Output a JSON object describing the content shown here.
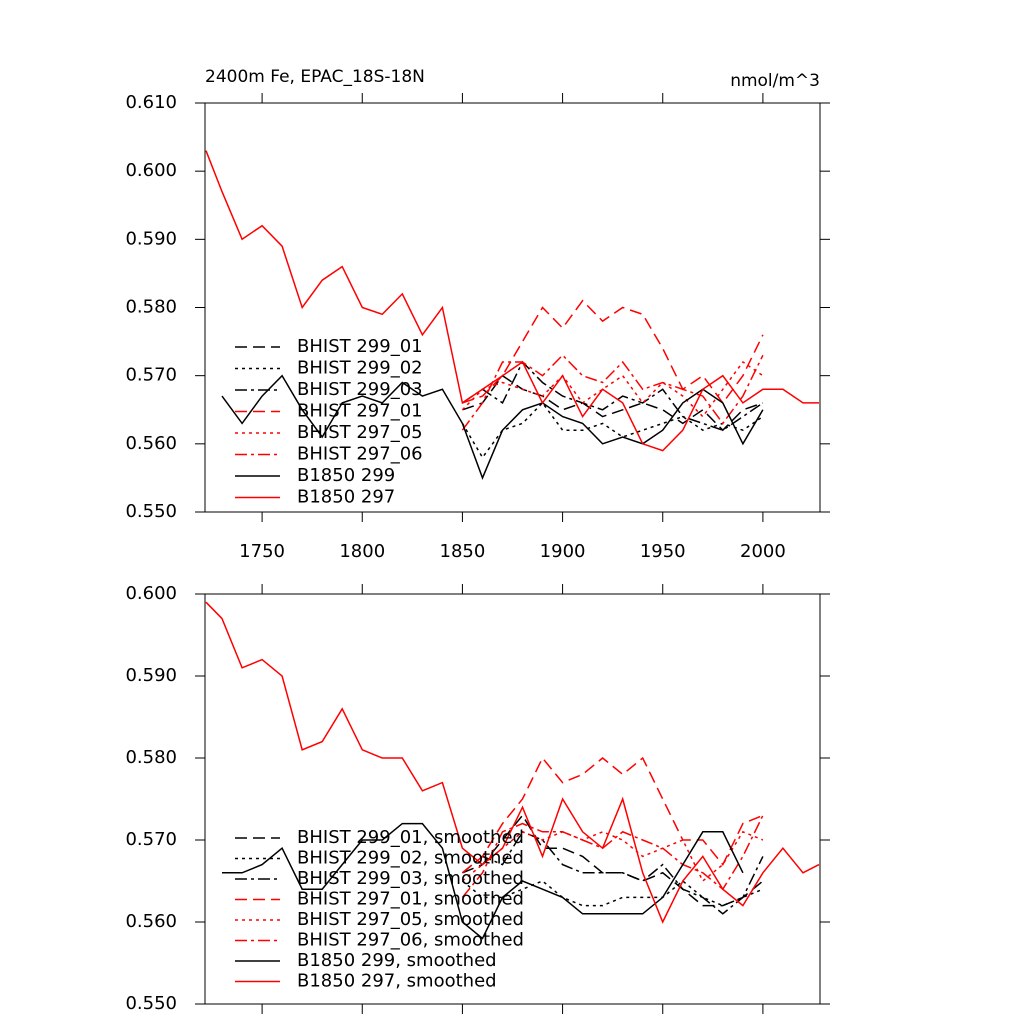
{
  "chart_data": [
    {
      "type": "line",
      "title": "2400m Fe, EPAC_18S-18N",
      "units": "nmol/m^3",
      "x": [
        1722,
        1730,
        1740,
        1750,
        1760,
        1770,
        1780,
        1790,
        1800,
        1810,
        1820,
        1830,
        1840,
        1850,
        1860,
        1870,
        1880,
        1890,
        1900,
        1910,
        1920,
        1930,
        1940,
        1950,
        1960,
        1970,
        1980,
        1990,
        2000,
        2010,
        2020,
        2028
      ],
      "xlim": [
        1721.5,
        2028.5
      ],
      "xticks": [
        1750,
        1800,
        1850,
        1900,
        1950,
        2000
      ],
      "ylim": [
        0.55,
        0.61
      ],
      "yticks": [
        {
          "value": 0.55,
          "label": "0.550"
        },
        {
          "value": 0.56,
          "label": "0.560"
        },
        {
          "value": 0.57,
          "label": "0.570"
        },
        {
          "value": 0.58,
          "label": "0.580"
        },
        {
          "value": 0.59,
          "label": "0.590"
        },
        {
          "value": 0.6,
          "label": "0.600"
        },
        {
          "value": 0.61,
          "label": "0.610"
        }
      ],
      "legend": "left",
      "series": [
        {
          "name": "BHIST 299_01",
          "color": "#000000",
          "dash": "dash",
          "values": [
            null,
            null,
            null,
            null,
            null,
            null,
            null,
            null,
            null,
            null,
            null,
            null,
            null,
            0.565,
            0.566,
            0.57,
            0.568,
            0.567,
            0.565,
            0.566,
            0.564,
            0.565,
            0.566,
            0.565,
            0.563,
            0.565,
            0.562,
            0.565,
            0.566,
            null,
            null,
            null
          ]
        },
        {
          "name": "BHIST 299_02",
          "color": "#000000",
          "dash": "dot",
          "values": [
            null,
            null,
            null,
            null,
            null,
            null,
            null,
            null,
            null,
            null,
            null,
            null,
            null,
            0.563,
            0.558,
            0.562,
            0.563,
            0.566,
            0.562,
            0.562,
            0.563,
            0.561,
            0.562,
            0.563,
            0.564,
            0.562,
            0.563,
            0.562,
            0.564,
            null,
            null,
            null
          ]
        },
        {
          "name": "BHIST 299_03",
          "color": "#000000",
          "dash": "dashdot",
          "values": [
            null,
            null,
            null,
            null,
            null,
            null,
            null,
            null,
            null,
            null,
            null,
            null,
            null,
            0.566,
            0.568,
            0.566,
            0.572,
            0.569,
            0.567,
            0.566,
            0.565,
            0.567,
            0.566,
            0.568,
            0.564,
            0.563,
            0.562,
            0.564,
            0.566,
            null,
            null,
            null
          ]
        },
        {
          "name": "BHIST 297_01",
          "color": "#ff0000",
          "dash": "dash",
          "values": [
            null,
            null,
            null,
            null,
            null,
            null,
            null,
            null,
            null,
            null,
            null,
            null,
            null,
            0.566,
            0.567,
            0.57,
            0.575,
            0.58,
            0.577,
            0.581,
            0.578,
            0.58,
            0.579,
            0.574,
            0.568,
            0.57,
            0.566,
            0.57,
            0.576,
            null,
            null,
            null
          ]
        },
        {
          "name": "BHIST 297_05",
          "color": "#ff0000",
          "dash": "dot",
          "values": [
            null,
            null,
            null,
            null,
            null,
            null,
            null,
            null,
            null,
            null,
            null,
            null,
            null,
            0.565,
            0.568,
            0.569,
            0.568,
            0.567,
            0.57,
            0.566,
            0.568,
            0.57,
            0.566,
            0.569,
            0.567,
            0.564,
            0.568,
            0.572,
            0.57,
            null,
            null,
            null
          ]
        },
        {
          "name": "BHIST 297_06",
          "color": "#ff0000",
          "dash": "dashdot",
          "values": [
            null,
            null,
            null,
            null,
            null,
            null,
            null,
            null,
            null,
            null,
            null,
            null,
            null,
            0.562,
            0.566,
            0.572,
            0.572,
            0.57,
            0.573,
            0.57,
            0.569,
            0.572,
            0.568,
            0.569,
            0.568,
            0.567,
            0.563,
            0.567,
            0.573,
            null,
            null,
            null
          ]
        },
        {
          "name": "B1850 299",
          "color": "#000000",
          "dash": "solid",
          "values": [
            null,
            0.567,
            0.563,
            0.567,
            0.57,
            0.565,
            0.561,
            0.566,
            0.567,
            0.566,
            0.569,
            0.567,
            0.568,
            0.563,
            0.555,
            0.562,
            0.565,
            0.566,
            0.564,
            0.563,
            0.56,
            0.561,
            0.56,
            0.562,
            0.566,
            0.568,
            0.566,
            0.56,
            0.565,
            null,
            null,
            null
          ]
        },
        {
          "name": "B1850 297",
          "color": "#ff0000",
          "dash": "solid",
          "values": [
            0.603,
            0.597,
            0.59,
            0.592,
            0.589,
            0.58,
            0.584,
            0.586,
            0.58,
            0.579,
            0.582,
            0.576,
            0.58,
            0.566,
            0.568,
            0.57,
            0.572,
            0.566,
            0.57,
            0.564,
            0.568,
            0.566,
            0.56,
            0.559,
            0.562,
            0.568,
            0.57,
            0.566,
            0.568,
            0.568,
            0.566,
            0.566
          ]
        }
      ]
    },
    {
      "type": "line",
      "x": [
        1722,
        1730,
        1740,
        1750,
        1760,
        1770,
        1780,
        1790,
        1800,
        1810,
        1820,
        1830,
        1840,
        1850,
        1860,
        1870,
        1880,
        1890,
        1900,
        1910,
        1920,
        1930,
        1940,
        1950,
        1960,
        1970,
        1980,
        1990,
        2000,
        2010,
        2020,
        2028
      ],
      "xlim": [
        1721.5,
        2028.5
      ],
      "xticks": [
        1750,
        1800,
        1850,
        1900,
        1950,
        2000
      ],
      "ylim": [
        0.55,
        0.6
      ],
      "yticks": [
        {
          "value": 0.55,
          "label": "0.550"
        },
        {
          "value": 0.56,
          "label": "0.560"
        },
        {
          "value": 0.57,
          "label": "0.570"
        },
        {
          "value": 0.58,
          "label": "0.580"
        },
        {
          "value": 0.59,
          "label": "0.590"
        },
        {
          "value": 0.6,
          "label": "0.600"
        }
      ],
      "legend": "lower-left",
      "series": [
        {
          "name": "BHIST 299_01, smoothed",
          "color": "#000000",
          "dash": "dash",
          "values": [
            null,
            null,
            null,
            null,
            null,
            null,
            null,
            null,
            null,
            null,
            null,
            null,
            null,
            0.566,
            0.567,
            0.57,
            0.573,
            0.569,
            0.569,
            0.568,
            0.566,
            0.566,
            0.565,
            0.566,
            0.564,
            0.562,
            0.562,
            0.563,
            0.565,
            null,
            null,
            null
          ]
        },
        {
          "name": "BHIST 299_02, smoothed",
          "color": "#000000",
          "dash": "dot",
          "values": [
            null,
            null,
            null,
            null,
            null,
            null,
            null,
            null,
            null,
            null,
            null,
            null,
            null,
            0.565,
            0.563,
            0.563,
            0.564,
            0.565,
            0.563,
            0.562,
            0.562,
            0.563,
            0.563,
            0.563,
            0.565,
            0.563,
            0.562,
            0.563,
            0.564,
            null,
            null,
            null
          ]
        },
        {
          "name": "BHIST 299_03, smoothed",
          "color": "#000000",
          "dash": "dashdot",
          "values": [
            null,
            null,
            null,
            null,
            null,
            null,
            null,
            null,
            null,
            null,
            null,
            null,
            null,
            0.566,
            0.568,
            0.567,
            0.571,
            0.57,
            0.567,
            0.566,
            0.566,
            0.566,
            0.565,
            0.567,
            0.564,
            0.563,
            0.561,
            0.563,
            0.568,
            null,
            null,
            null
          ]
        },
        {
          "name": "BHIST 297_01, smoothed",
          "color": "#ff0000",
          "dash": "dash",
          "values": [
            null,
            null,
            null,
            null,
            null,
            null,
            null,
            null,
            null,
            null,
            null,
            null,
            null,
            0.566,
            0.568,
            0.572,
            0.575,
            0.58,
            0.577,
            0.578,
            0.58,
            0.578,
            0.58,
            0.575,
            0.57,
            0.57,
            0.567,
            0.572,
            0.573,
            null,
            null,
            null
          ]
        },
        {
          "name": "BHIST 297_05, smoothed",
          "color": "#ff0000",
          "dash": "dot",
          "values": [
            null,
            null,
            null,
            null,
            null,
            null,
            null,
            null,
            null,
            null,
            null,
            null,
            null,
            0.565,
            0.567,
            0.569,
            0.571,
            0.57,
            0.571,
            0.57,
            0.571,
            0.57,
            0.568,
            0.569,
            0.57,
            0.565,
            0.567,
            0.571,
            0.57,
            null,
            null,
            null
          ]
        },
        {
          "name": "BHIST 297_06, smoothed",
          "color": "#ff0000",
          "dash": "dashdot",
          "values": [
            null,
            null,
            null,
            null,
            null,
            null,
            null,
            null,
            null,
            null,
            null,
            null,
            null,
            0.563,
            0.566,
            0.571,
            0.572,
            0.571,
            0.571,
            0.57,
            0.569,
            0.571,
            0.57,
            0.569,
            0.567,
            0.566,
            0.564,
            0.568,
            0.573,
            null,
            null,
            null
          ]
        },
        {
          "name": "B1850 299, smoothed",
          "color": "#000000",
          "dash": "solid",
          "values": [
            null,
            0.566,
            0.566,
            0.567,
            0.569,
            0.564,
            0.564,
            0.567,
            0.57,
            0.57,
            0.572,
            0.572,
            0.569,
            0.56,
            0.558,
            0.563,
            0.565,
            0.564,
            0.563,
            0.561,
            0.561,
            0.561,
            0.561,
            0.563,
            0.567,
            0.571,
            0.571,
            0.566,
            null,
            null,
            null,
            null
          ]
        },
        {
          "name": "B1850 297, smoothed",
          "color": "#ff0000",
          "dash": "solid",
          "values": [
            0.599,
            0.597,
            0.591,
            0.592,
            0.59,
            0.581,
            0.582,
            0.586,
            0.581,
            0.58,
            0.58,
            0.576,
            0.577,
            0.569,
            0.567,
            0.569,
            0.574,
            0.568,
            0.575,
            0.571,
            0.569,
            0.575,
            0.566,
            0.56,
            0.565,
            0.568,
            0.564,
            0.562,
            0.566,
            0.569,
            0.566,
            0.567
          ]
        }
      ]
    }
  ]
}
